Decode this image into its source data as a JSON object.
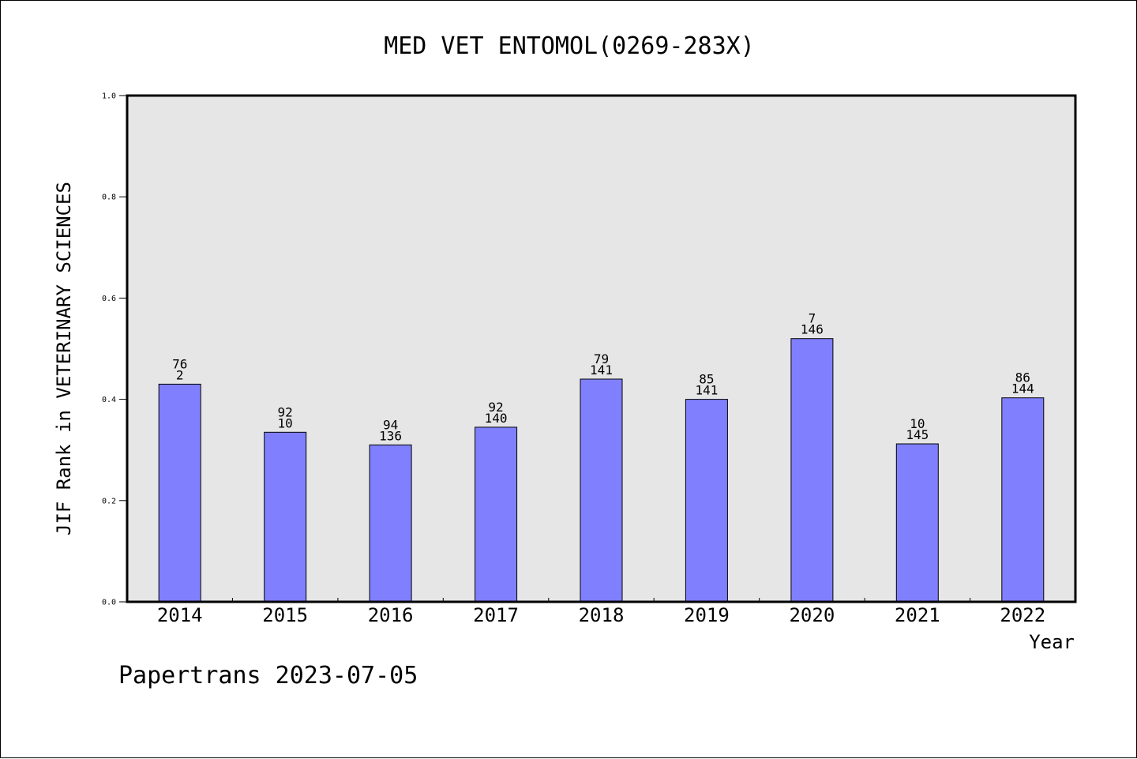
{
  "footer": "Papertrans 2023-07-05",
  "colors": {
    "bar": "#8080ff",
    "plot_background": "#e6e6e6",
    "axis": "#000000"
  },
  "chart_data": {
    "type": "bar",
    "title": "MED VET ENTOMOL(0269-283X)",
    "xlabel": "Year",
    "ylabel": "JIF Rank in VETERINARY SCIENCES",
    "ylim": [
      0,
      1.0
    ],
    "yticks": [
      "0.0",
      "0.2",
      "0.4",
      "0.6",
      "0.8",
      "1.0"
    ],
    "grid": false,
    "categories": [
      "2014",
      "2015",
      "2016",
      "2017",
      "2018",
      "2019",
      "2020",
      "2021",
      "2022"
    ],
    "values": [
      0.43,
      0.335,
      0.31,
      0.345,
      0.44,
      0.4,
      0.52,
      0.312,
      0.403
    ],
    "labels_top": [
      "76",
      "92",
      "94",
      "92",
      "79",
      "85",
      "7",
      "10",
      "86"
    ],
    "labels_bottom": [
      "2",
      "10",
      "136",
      "140",
      "141",
      "141",
      "146",
      "145",
      "144"
    ]
  }
}
